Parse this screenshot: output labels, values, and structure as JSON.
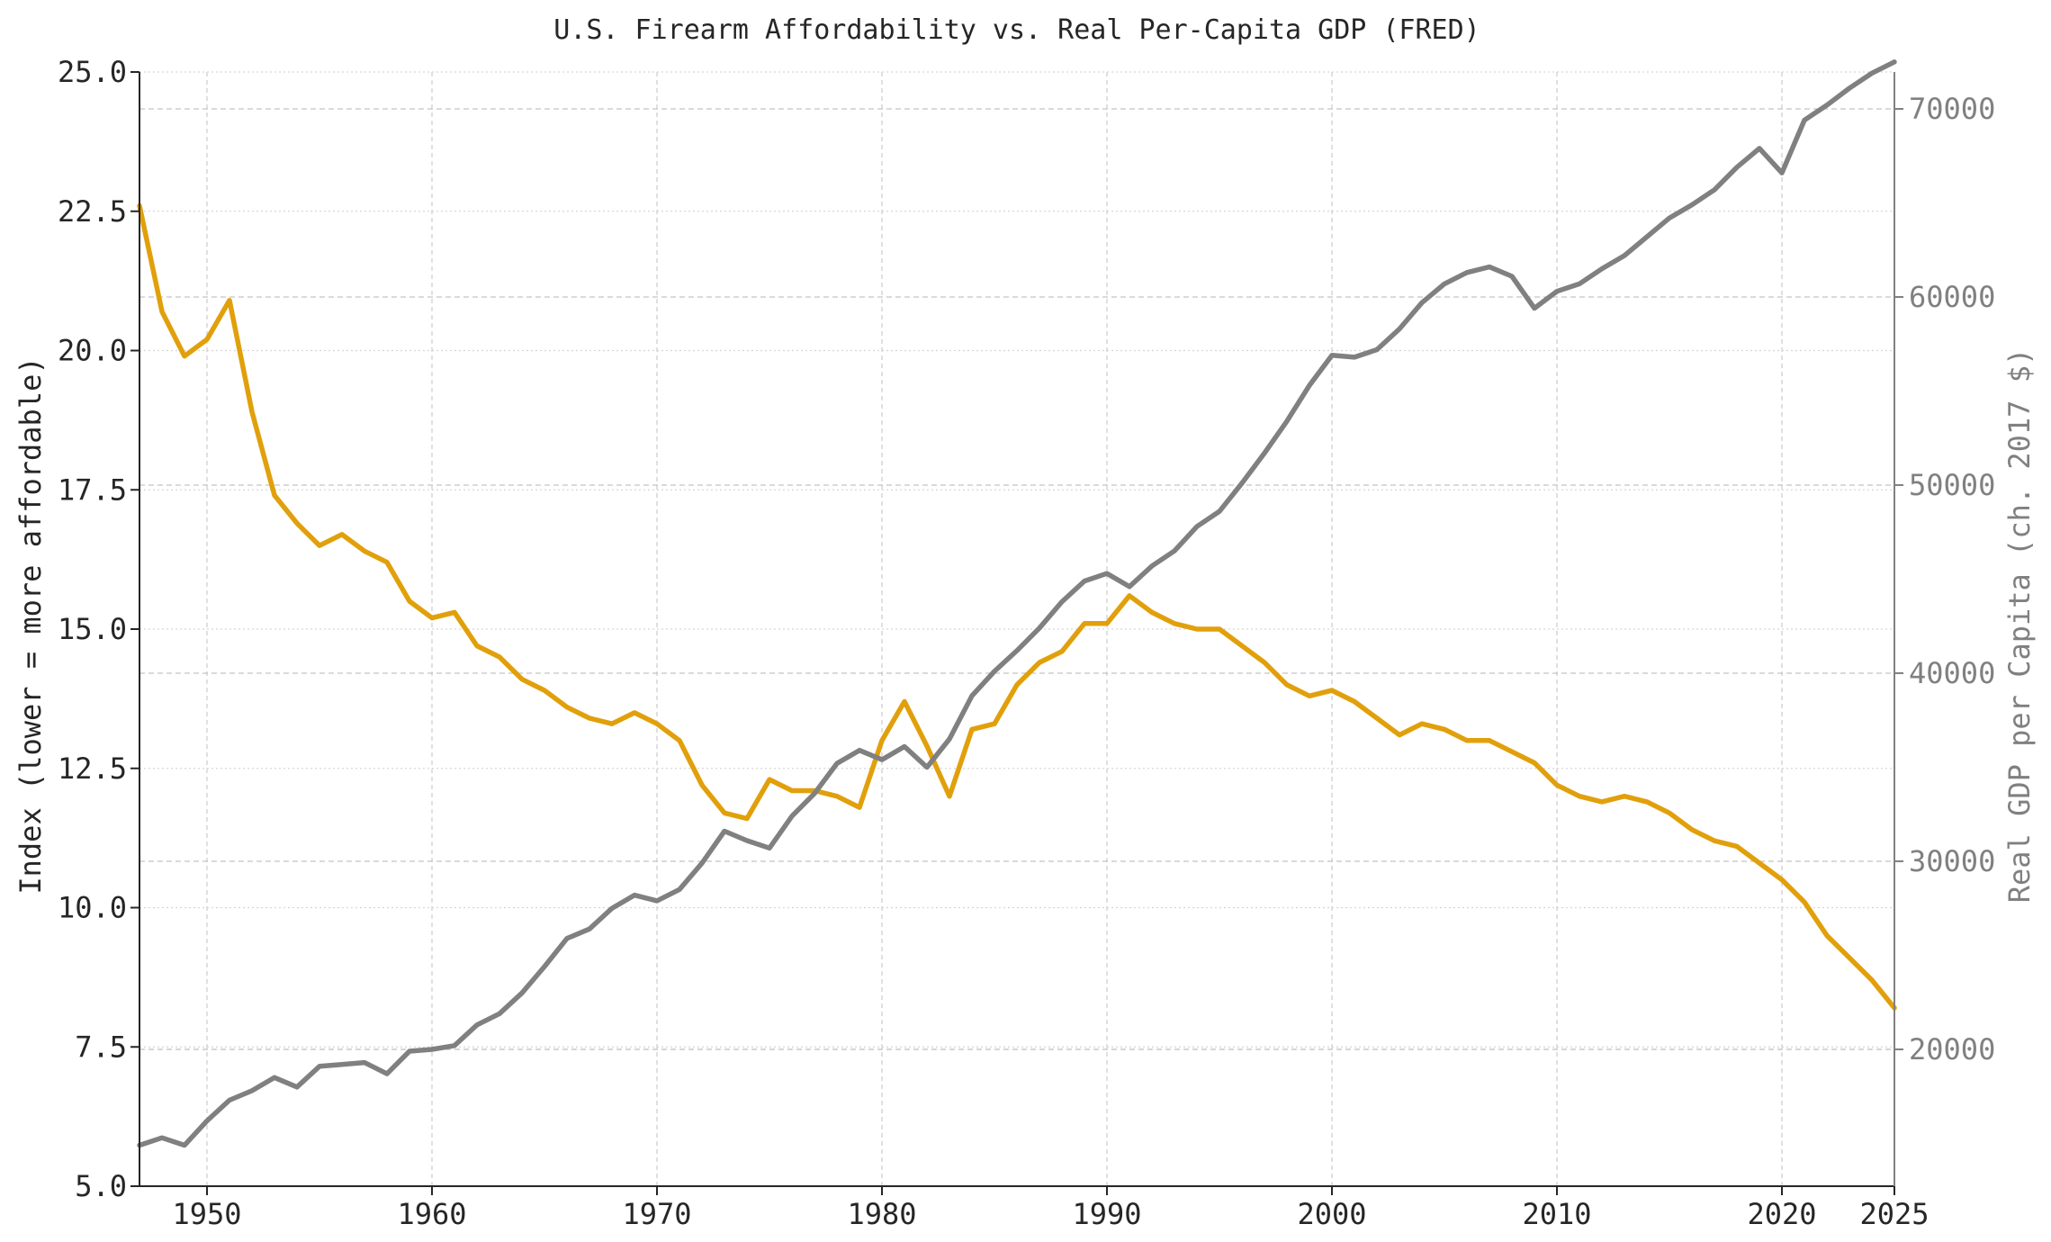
{
  "chart_data": {
    "type": "line",
    "title": "U.S. Firearm Affordability vs. Real Per-Capita GDP (FRED)",
    "xlabel": "",
    "ylabel_left": "Index (lower = more affordable)",
    "ylabel_right": "Real GDP per Capita (ch. 2017 $)",
    "xlim": [
      1947,
      2025
    ],
    "ylim_left": [
      5.0,
      25.0
    ],
    "ylim_right": [
      12725,
      71962
    ],
    "x_ticks": [
      "1950",
      "1960",
      "1970",
      "1980",
      "1990",
      "2000",
      "2010",
      "2020",
      "2025"
    ],
    "y_ticks_left": [
      "5.0",
      "7.5",
      "10.0",
      "12.5",
      "15.0",
      "17.5",
      "20.0",
      "22.5",
      "25.0"
    ],
    "y_ticks_right": [
      "20000",
      "30000",
      "40000",
      "50000",
      "60000",
      "70000"
    ],
    "grid": true,
    "x": [
      1947,
      1948,
      1949,
      1950,
      1951,
      1952,
      1953,
      1954,
      1955,
      1956,
      1957,
      1958,
      1959,
      1960,
      1961,
      1962,
      1963,
      1964,
      1965,
      1966,
      1967,
      1968,
      1969,
      1970,
      1971,
      1972,
      1973,
      1974,
      1975,
      1976,
      1977,
      1978,
      1979,
      1980,
      1981,
      1982,
      1983,
      1984,
      1985,
      1986,
      1987,
      1988,
      1989,
      1990,
      1991,
      1992,
      1993,
      1994,
      1995,
      1996,
      1997,
      1998,
      1999,
      2000,
      2001,
      2002,
      2003,
      2004,
      2005,
      2006,
      2007,
      2008,
      2009,
      2010,
      2011,
      2012,
      2013,
      2014,
      2015,
      2016,
      2017,
      2018,
      2019,
      2020,
      2021,
      2022,
      2023,
      2024,
      2025
    ],
    "series": [
      {
        "axis": "left",
        "color": "#E1A00B",
        "values": [
          22.6,
          20.7,
          19.9,
          20.2,
          20.9,
          18.9,
          17.4,
          16.9,
          16.5,
          16.7,
          16.4,
          16.2,
          15.5,
          15.2,
          15.3,
          14.7,
          14.5,
          14.1,
          13.9,
          13.6,
          13.4,
          13.3,
          13.5,
          13.3,
          13.0,
          12.2,
          11.7,
          11.6,
          12.3,
          12.1,
          12.1,
          12.0,
          11.8,
          13.0,
          13.7,
          12.9,
          12.0,
          13.2,
          13.3,
          14.0,
          14.4,
          14.6,
          15.1,
          15.1,
          15.6,
          15.3,
          15.1,
          15.0,
          15.0,
          14.7,
          14.4,
          14.0,
          13.8,
          13.9,
          13.7,
          13.4,
          13.1,
          13.3,
          13.2,
          13.0,
          13.0,
          12.8,
          12.6,
          12.2,
          12.0,
          11.9,
          12.0,
          11.9,
          11.7,
          11.4,
          11.2,
          11.1,
          10.8,
          10.5,
          10.1,
          9.5,
          9.1,
          8.7,
          8.2
        ]
      },
      {
        "axis": "right",
        "color": "#808080",
        "values": [
          14900,
          15300,
          14900,
          16200,
          17300,
          17800,
          18500,
          18000,
          19100,
          19200,
          19300,
          18700,
          19900,
          20000,
          20200,
          21300,
          21900,
          23000,
          24400,
          25900,
          26400,
          27500,
          28200,
          27900,
          28500,
          29900,
          31600,
          31100,
          30700,
          32400,
          33600,
          35200,
          35900,
          35400,
          36100,
          35000,
          36500,
          38800,
          40100,
          41200,
          42400,
          43800,
          44900,
          45300,
          44600,
          45700,
          46500,
          47800,
          48600,
          50100,
          51700,
          53400,
          55300,
          56900,
          56800,
          57200,
          58300,
          59700,
          60700,
          61300,
          61600,
          61100,
          59400,
          60300,
          60700,
          61500,
          62200,
          63200,
          64200,
          64900,
          65700,
          66900,
          67900,
          66600,
          69400,
          70200,
          71100,
          71900,
          72500
        ]
      }
    ]
  }
}
